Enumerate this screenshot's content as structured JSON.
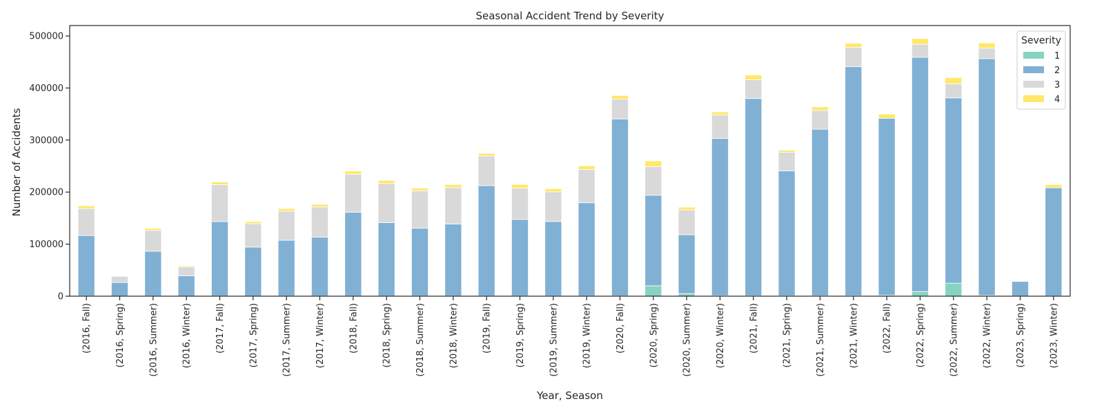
{
  "chart_data": {
    "type": "bar",
    "stacked": true,
    "title": "Seasonal Accident Trend by Severity",
    "xlabel": "Year, Season",
    "ylabel": "Number of Accidents",
    "ylim": [
      0,
      520000
    ],
    "yticks": [
      0,
      100000,
      200000,
      300000,
      400000,
      500000
    ],
    "grid": false,
    "legend": {
      "title": "Severity",
      "position": "top-right"
    },
    "categories": [
      "(2016, Fall)",
      "(2016, Spring)",
      "(2016, Summer)",
      "(2016, Winter)",
      "(2017, Fall)",
      "(2017, Spring)",
      "(2017, Summer)",
      "(2017, Winter)",
      "(2018, Fall)",
      "(2018, Spring)",
      "(2018, Summer)",
      "(2018, Winter)",
      "(2019, Fall)",
      "(2019, Spring)",
      "(2019, Summer)",
      "(2019, Winter)",
      "(2020, Fall)",
      "(2020, Spring)",
      "(2020, Summer)",
      "(2020, Winter)",
      "(2021, Fall)",
      "(2021, Spring)",
      "(2021, Summer)",
      "(2021, Winter)",
      "(2022, Fall)",
      "(2022, Spring)",
      "(2022, Summer)",
      "(2022, Winter)",
      "(2023, Spring)",
      "(2023, Winter)"
    ],
    "series": [
      {
        "name": "1",
        "color": "#87d3c3",
        "values": [
          500,
          300,
          400,
          300,
          400,
          300,
          400,
          400,
          400,
          400,
          500,
          500,
          500,
          500,
          500,
          500,
          600,
          20000,
          5000,
          1000,
          800,
          700,
          800,
          900,
          1800,
          9000,
          25000,
          1500,
          300,
          400
        ]
      },
      {
        "name": "2",
        "color": "#80b0d4",
        "values": [
          116000,
          26000,
          86000,
          39000,
          143000,
          94000,
          107000,
          113000,
          161000,
          141000,
          130000,
          138000,
          212000,
          147000,
          143000,
          179000,
          340000,
          174000,
          113000,
          302000,
          379000,
          240000,
          320000,
          440000,
          340000,
          450000,
          356000,
          455000,
          28000,
          208000
        ]
      },
      {
        "name": "3",
        "color": "#d9d9d9",
        "values": [
          52000,
          12000,
          40000,
          17000,
          71000,
          45000,
          56000,
          58000,
          73000,
          75000,
          72000,
          70000,
          57000,
          60000,
          57000,
          64000,
          38000,
          55000,
          48000,
          45000,
          36000,
          36000,
          36000,
          37000,
          0,
          25000,
          27000,
          20000,
          0,
          0
        ]
      },
      {
        "name": "4",
        "color": "#ffe86b",
        "values": [
          5000,
          1000,
          4000,
          2000,
          5000,
          4000,
          5000,
          5000,
          6000,
          6000,
          5000,
          6000,
          5000,
          7000,
          6000,
          7000,
          7000,
          11000,
          5000,
          6000,
          9000,
          4000,
          7000,
          8000,
          8000,
          11000,
          12000,
          10000,
          0,
          6000
        ]
      }
    ]
  }
}
